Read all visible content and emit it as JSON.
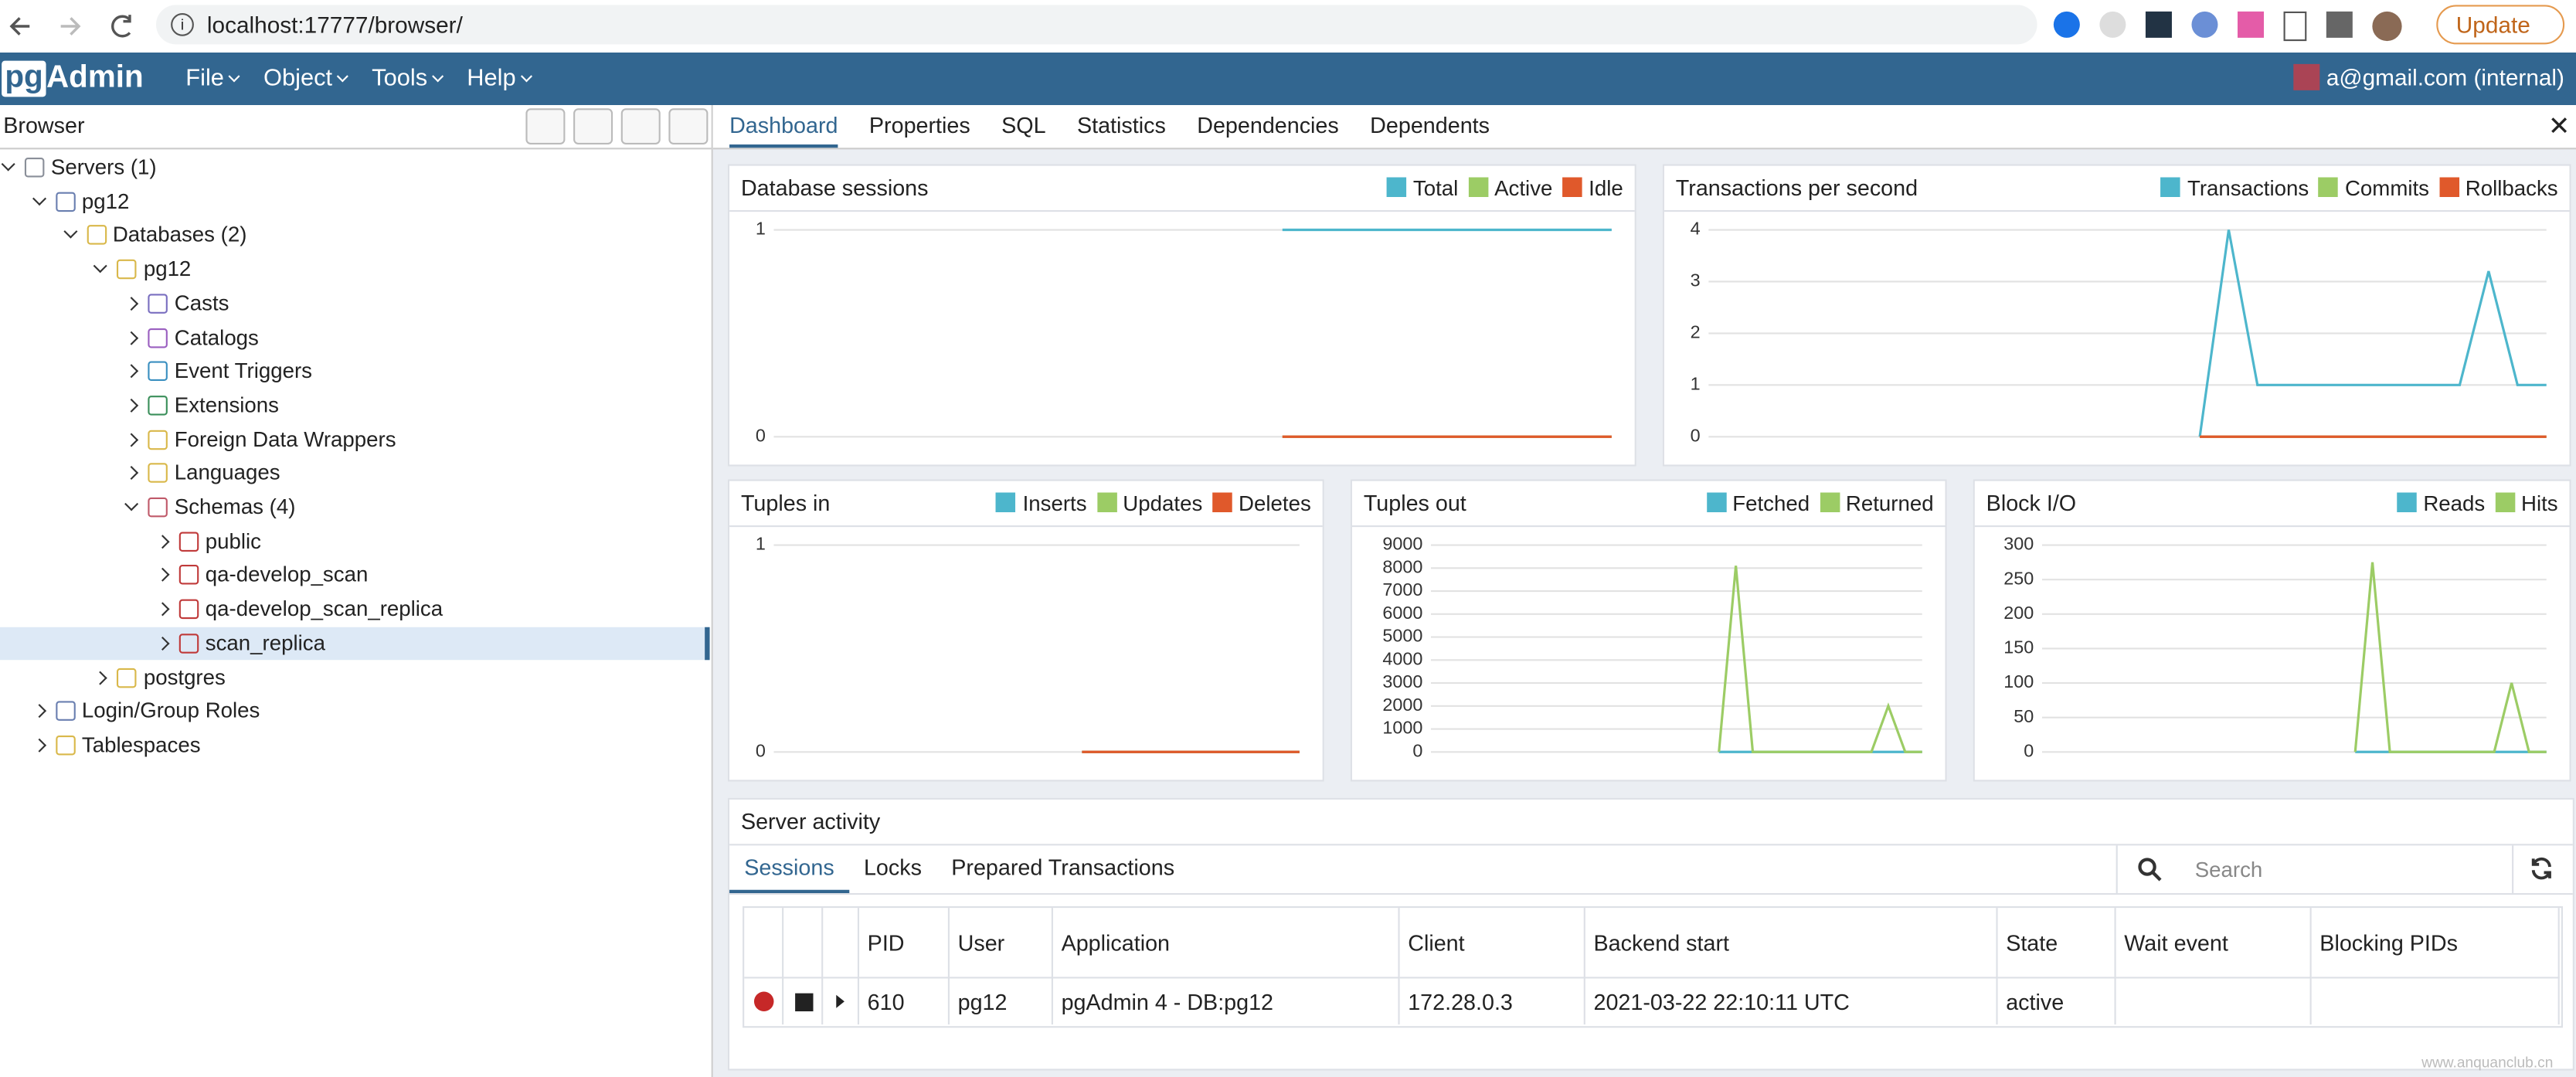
{
  "browser": {
    "url": "localhost:17777/browser/",
    "update_button": "Update"
  },
  "navbar": {
    "brand_prefix": "pg",
    "brand_suffix": "Admin",
    "menus": [
      "File",
      "Object",
      "Tools",
      "Help"
    ],
    "user": "a@gmail.com (internal)"
  },
  "tree_panel": {
    "title": "Browser",
    "nodes": [
      {
        "label": "Servers (1)",
        "depth": 0,
        "expanded": true
      },
      {
        "label": "pg12",
        "depth": 1,
        "expanded": true
      },
      {
        "label": "Databases (2)",
        "depth": 2,
        "expanded": true
      },
      {
        "label": "pg12",
        "depth": 3,
        "expanded": true
      },
      {
        "label": "Casts",
        "depth": 4,
        "expanded": false
      },
      {
        "label": "Catalogs",
        "depth": 4,
        "expanded": false
      },
      {
        "label": "Event Triggers",
        "depth": 4,
        "expanded": false
      },
      {
        "label": "Extensions",
        "depth": 4,
        "expanded": false
      },
      {
        "label": "Foreign Data Wrappers",
        "depth": 4,
        "expanded": false
      },
      {
        "label": "Languages",
        "depth": 4,
        "expanded": false
      },
      {
        "label": "Schemas (4)",
        "depth": 4,
        "expanded": true
      },
      {
        "label": "public",
        "depth": 5,
        "expanded": false
      },
      {
        "label": "qa-develop_scan",
        "depth": 5,
        "expanded": false
      },
      {
        "label": "qa-develop_scan_replica",
        "depth": 5,
        "expanded": false
      },
      {
        "label": "scan_replica",
        "depth": 5,
        "expanded": false,
        "selected": true
      },
      {
        "label": "postgres",
        "depth": 3,
        "expanded": false
      },
      {
        "label": "Login/Group Roles",
        "depth": 1,
        "expanded": false
      },
      {
        "label": "Tablespaces",
        "depth": 1,
        "expanded": false
      }
    ]
  },
  "tabs": {
    "items": [
      "Dashboard",
      "Properties",
      "SQL",
      "Statistics",
      "Dependencies",
      "Dependents"
    ],
    "active": 0
  },
  "dashboard": {
    "charts": [
      {
        "type": "line",
        "title": "Database sessions",
        "ylim": [
          0,
          1
        ],
        "yticks": [
          0,
          1
        ],
        "series": [
          {
            "name": "Total",
            "color": "#4db6cc",
            "values": [
              null,
              null,
              null,
              null,
              null,
              null,
              null,
              null,
              null,
              null,
              null,
              null,
              null,
              null,
              null,
              null,
              null,
              1,
              1,
              1,
              1,
              1,
              1,
              1,
              1,
              1,
              1,
              1,
              1
            ]
          },
          {
            "name": "Active",
            "color": "#9ccc65",
            "values": [
              null,
              null,
              null,
              null,
              null,
              null,
              null,
              null,
              null,
              null,
              null,
              null,
              null,
              null,
              null,
              null,
              null,
              0,
              0,
              0,
              0,
              0,
              0,
              0,
              0,
              0,
              0,
              0,
              0
            ]
          },
          {
            "name": "Idle",
            "color": "#e0592b",
            "values": [
              null,
              null,
              null,
              null,
              null,
              null,
              null,
              null,
              null,
              null,
              null,
              null,
              null,
              null,
              null,
              null,
              null,
              0,
              0,
              0,
              0,
              0,
              0,
              0,
              0,
              0,
              0,
              0,
              0
            ]
          }
        ]
      },
      {
        "type": "line",
        "title": "Transactions per second",
        "ylim": [
          0,
          4
        ],
        "yticks": [
          0,
          1,
          2,
          3,
          4
        ],
        "series": [
          {
            "name": "Transactions",
            "color": "#4db6cc",
            "values": [
              null,
              null,
              null,
              null,
              null,
              null,
              null,
              null,
              null,
              null,
              null,
              null,
              null,
              null,
              null,
              null,
              null,
              0,
              4,
              1,
              1,
              1,
              1,
              1,
              1,
              1,
              1,
              3.2,
              1,
              1
            ]
          },
          {
            "name": "Commits",
            "color": "#9ccc65",
            "values": [
              null,
              null,
              null,
              null,
              null,
              null,
              null,
              null,
              null,
              null,
              null,
              null,
              null,
              null,
              null,
              null,
              null,
              0,
              0,
              0,
              0,
              0,
              0,
              0,
              0,
              0,
              0,
              0,
              0,
              0
            ]
          },
          {
            "name": "Rollbacks",
            "color": "#e0592b",
            "values": [
              null,
              null,
              null,
              null,
              null,
              null,
              null,
              null,
              null,
              null,
              null,
              null,
              null,
              null,
              null,
              null,
              null,
              0,
              0,
              0,
              0,
              0,
              0,
              0,
              0,
              0,
              0,
              0,
              0,
              0
            ]
          }
        ]
      },
      {
        "type": "line",
        "title": "Tuples in",
        "ylim": [
          0,
          1
        ],
        "yticks": [
          0,
          1
        ],
        "series": [
          {
            "name": "Inserts",
            "color": "#4db6cc",
            "values": [
              null,
              null,
              null,
              null,
              null,
              null,
              null,
              null,
              null,
              null,
              null,
              null,
              null,
              null,
              null,
              null,
              null,
              0,
              0,
              0,
              0,
              0,
              0,
              0,
              0,
              0,
              0,
              0,
              0,
              0
            ]
          },
          {
            "name": "Updates",
            "color": "#9ccc65",
            "values": [
              null,
              null,
              null,
              null,
              null,
              null,
              null,
              null,
              null,
              null,
              null,
              null,
              null,
              null,
              null,
              null,
              null,
              0,
              0,
              0,
              0,
              0,
              0,
              0,
              0,
              0,
              0,
              0,
              0,
              0
            ]
          },
          {
            "name": "Deletes",
            "color": "#e0592b",
            "values": [
              null,
              null,
              null,
              null,
              null,
              null,
              null,
              null,
              null,
              null,
              null,
              null,
              null,
              null,
              null,
              null,
              null,
              0,
              0,
              0,
              0,
              0,
              0,
              0,
              0,
              0,
              0,
              0,
              0,
              0
            ]
          }
        ]
      },
      {
        "type": "line",
        "title": "Tuples out",
        "ylim": [
          0,
          9000
        ],
        "yticks": [
          0,
          1000,
          2000,
          3000,
          4000,
          5000,
          6000,
          7000,
          8000,
          9000
        ],
        "series": [
          {
            "name": "Fetched",
            "color": "#4db6cc",
            "values": [
              null,
              null,
              null,
              null,
              null,
              null,
              null,
              null,
              null,
              null,
              null,
              null,
              null,
              null,
              null,
              null,
              null,
              0,
              0,
              0,
              0,
              0,
              0,
              0,
              0,
              0,
              0,
              0,
              0,
              0
            ]
          },
          {
            "name": "Returned",
            "color": "#9ccc65",
            "values": [
              null,
              null,
              null,
              null,
              null,
              null,
              null,
              null,
              null,
              null,
              null,
              null,
              null,
              null,
              null,
              null,
              null,
              0,
              8100,
              0,
              0,
              0,
              0,
              0,
              0,
              0,
              0,
              2000,
              0,
              0
            ]
          }
        ]
      },
      {
        "type": "line",
        "title": "Block I/O",
        "ylim": [
          0,
          300
        ],
        "yticks": [
          0,
          50,
          100,
          150,
          200,
          250,
          300
        ],
        "series": [
          {
            "name": "Reads",
            "color": "#4db6cc",
            "values": [
              null,
              null,
              null,
              null,
              null,
              null,
              null,
              null,
              null,
              null,
              null,
              null,
              null,
              null,
              null,
              null,
              null,
              null,
              0,
              0,
              0,
              0,
              0,
              0,
              0,
              0,
              0,
              0,
              0,
              0
            ]
          },
          {
            "name": "Hits",
            "color": "#9ccc65",
            "values": [
              null,
              null,
              null,
              null,
              null,
              null,
              null,
              null,
              null,
              null,
              null,
              null,
              null,
              null,
              null,
              null,
              null,
              null,
              0,
              275,
              0,
              0,
              0,
              0,
              0,
              0,
              0,
              100,
              0,
              0
            ]
          }
        ]
      }
    ]
  },
  "server_activity": {
    "title": "Server activity",
    "tabs": [
      "Sessions",
      "Locks",
      "Prepared Transactions"
    ],
    "active": 0,
    "search_placeholder": "Search",
    "table": {
      "columns": [
        "PID",
        "User",
        "Application",
        "Client",
        "Backend start",
        "State",
        "Wait event",
        "Blocking PIDs"
      ],
      "rows": [
        [
          610,
          "pg12",
          "pgAdmin 4 - DB:pg12",
          "172.28.0.3",
          "2021-03-22 22:10:11 UTC",
          "active"
        ]
      ]
    }
  },
  "watermark": "www.anquanclub.cn"
}
